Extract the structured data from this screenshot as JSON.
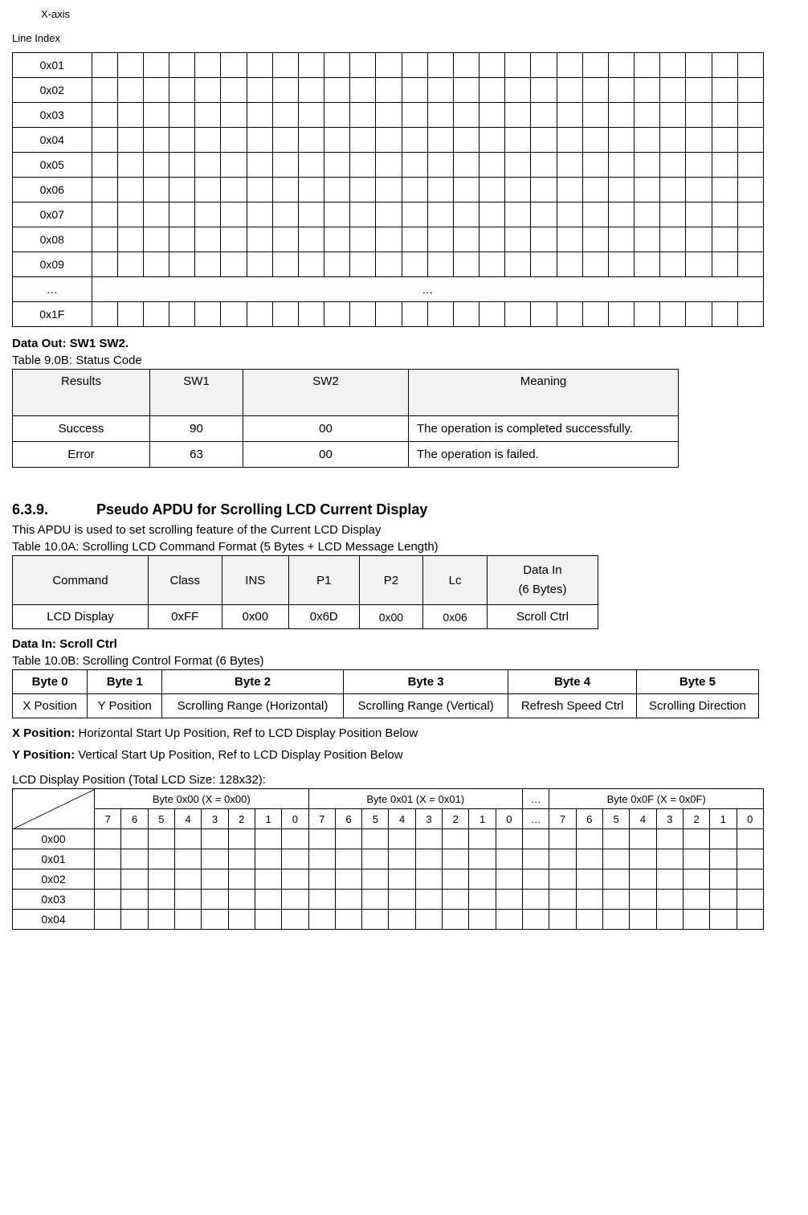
{
  "axis_label": "X-axis",
  "line_index_label": "Line Index",
  "grid1": {
    "row_labels": [
      "0x01",
      "0x02",
      "0x03",
      "0x04",
      "0x05",
      "0x06",
      "0x07",
      "0x08",
      "0x09",
      "…",
      "0x1F"
    ],
    "dots_text": "…",
    "bit_cols": 26
  },
  "data_out_label_bold": "Data Out: SW1 SW2.",
  "status_caption": "Table 9.0B: Status Code",
  "status_table": {
    "headers": [
      "Results",
      "SW1",
      "SW2",
      "Meaning"
    ],
    "rows": [
      [
        "Success",
        "90",
        "00",
        "The operation is completed successfully."
      ],
      [
        "Error",
        "63",
        "00",
        "The operation is failed."
      ]
    ]
  },
  "section": {
    "num": "6.3.9.",
    "title": "Pseudo APDU for Scrolling LCD Current Display"
  },
  "section_para": "This APDU is used to set scrolling feature of the Current LCD Display",
  "cmd_caption": "Table 10.0A: Scrolling LCD Command Format (5 Bytes + LCD Message Length)",
  "cmd_table": {
    "headers": [
      "Command",
      "Class",
      "INS",
      "P1",
      "P2",
      "Lc",
      "Data In"
    ],
    "header_line2": "(6 Bytes)",
    "row": [
      "LCD Display",
      "0xFF",
      "0x00",
      "0x6D",
      "0x00",
      "0x06",
      "Scroll Ctrl"
    ]
  },
  "data_in_label": "Data In: Scroll Ctrl",
  "ctrl_caption": "Table 10.0B: Scrolling Control Format (6 Bytes)",
  "ctrl_table": {
    "headers": [
      "Byte 0",
      "Byte 1",
      "Byte 2",
      "Byte 3",
      "Byte 4",
      "Byte 5"
    ],
    "row": [
      "X Position",
      "Y Position",
      "Scrolling Range (Horizontal)",
      "Scrolling Range (Vertical)",
      "Refresh Speed Ctrl",
      "Scrolling Direction"
    ]
  },
  "xpos_label": "X Position:",
  "xpos_text": " Horizontal Start Up Position, Ref to LCD Display Position Below",
  "ypos_label": "Y Position:",
  "ypos_text": " Vertical Start Up Position, Ref to LCD Display Position Below",
  "pos_caption": "LCD Display Position (Total LCD Size: 128x32):",
  "pos_table": {
    "byte_headers": [
      "Byte 0x00 (X = 0x00)",
      "Byte 0x01 (X = 0x01)",
      "…",
      "Byte 0x0F (X = 0x0F)"
    ],
    "bits": [
      "7",
      "6",
      "5",
      "4",
      "3",
      "2",
      "1",
      "0"
    ],
    "dots": "…",
    "row_labels": [
      "0x00",
      "0x01",
      "0x02",
      "0x03",
      "0x04"
    ]
  }
}
